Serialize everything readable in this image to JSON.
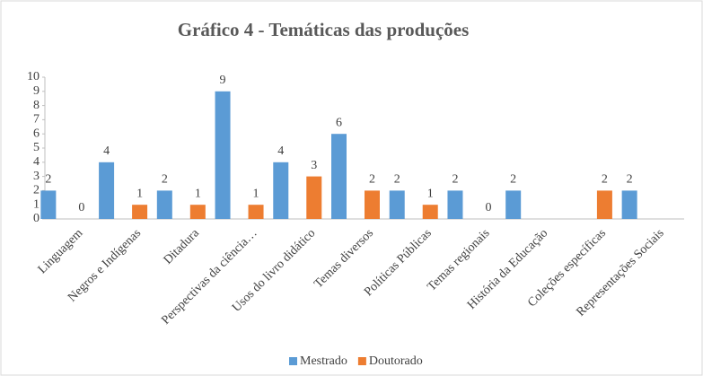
{
  "chart_data": {
    "type": "bar",
    "title": "Gráfico 4 - Temáticas das produções",
    "categories": [
      "Linguagem",
      "Negros e Indígenas",
      "Ditadura",
      "Perspectivas da ciência…",
      "Usos do livro didático",
      "Temas diversos",
      "Políticas Públicas",
      "Temas regionais",
      "História da Educação",
      "Coleções específicas",
      "Representações Sociais"
    ],
    "series": [
      {
        "name": "Mestrado",
        "color": "#5b9bd5",
        "values": [
          2,
          4,
          2,
          9,
          4,
          6,
          2,
          2,
          2,
          null,
          2
        ]
      },
      {
        "name": "Doutorado",
        "color": "#ed7d31",
        "values": [
          0,
          1,
          1,
          1,
          3,
          2,
          1,
          0,
          null,
          2,
          null
        ]
      }
    ],
    "ylim": [
      0,
      10
    ],
    "yticks": [
      0,
      1,
      2,
      3,
      4,
      5,
      6,
      7,
      8,
      9,
      10
    ],
    "legend": "bottom"
  }
}
